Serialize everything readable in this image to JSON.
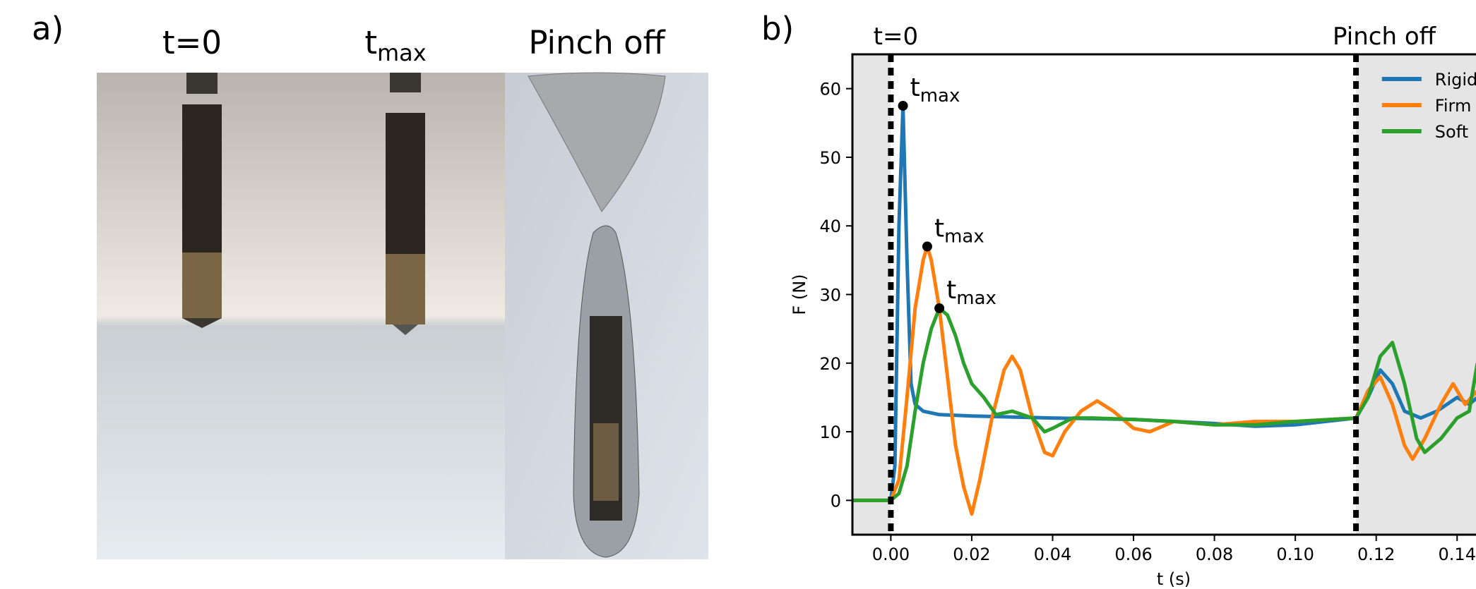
{
  "panel_a": {
    "label": "a)",
    "titles": [
      {
        "text": "t=0"
      },
      {
        "text": "t",
        "subscript": "max"
      },
      {
        "text": "Pinch off"
      }
    ]
  },
  "chart_data": {
    "type": "line",
    "panel_label": "b)",
    "xlabel": "t (s)",
    "ylabel": "F (N)",
    "xlim": [
      -0.0095,
      0.16
    ],
    "ylim": [
      -5,
      65
    ],
    "xticks": [
      {
        "value": 0,
        "label": "0.00"
      },
      {
        "value": 0.02,
        "label": "0.02"
      },
      {
        "value": 0.04,
        "label": "0.04"
      },
      {
        "value": 0.06,
        "label": "0.06"
      },
      {
        "value": 0.08,
        "label": "0.08"
      },
      {
        "value": 0.1,
        "label": "0.10"
      },
      {
        "value": 0.12,
        "label": "0.12"
      },
      {
        "value": 0.14,
        "label": "0.14"
      }
    ],
    "yticks": [
      0,
      10,
      20,
      30,
      40,
      50,
      60
    ],
    "grid": false,
    "legend": "upper right",
    "shade_outside_vlines": true,
    "vlines": [
      {
        "x": 0,
        "label": "t=0"
      },
      {
        "x": 0.115,
        "label": "Pinch off"
      }
    ],
    "annotations": [
      {
        "x": 0.003,
        "y": 57.5,
        "text": "t",
        "subscript": "max"
      },
      {
        "x": 0.009,
        "y": 37,
        "text": "t",
        "subscript": "max"
      },
      {
        "x": 0.012,
        "y": 28,
        "text": "t",
        "subscript": "max"
      }
    ],
    "series": [
      {
        "name": "Rigid",
        "color": "#1f77b4",
        "x": [
          -0.0095,
          0,
          0.001,
          0.002,
          0.003,
          0.004,
          0.005,
          0.006,
          0.008,
          0.012,
          0.02,
          0.04,
          0.06,
          0.08,
          0.09,
          0.1,
          0.115,
          0.118,
          0.121,
          0.124,
          0.127,
          0.131,
          0.135,
          0.14,
          0.143,
          0.145
        ],
        "values": [
          0,
          0,
          5,
          40,
          57.5,
          35,
          17,
          14,
          13,
          12.5,
          12.3,
          12,
          11.8,
          11.2,
          10.8,
          11,
          12,
          15,
          19,
          17,
          13,
          12,
          13,
          15,
          14,
          15
        ]
      },
      {
        "name": "Firm",
        "color": "#ff7f0e",
        "x": [
          -0.0095,
          0,
          0.002,
          0.004,
          0.006,
          0.008,
          0.009,
          0.01,
          0.012,
          0.014,
          0.016,
          0.018,
          0.02,
          0.022,
          0.025,
          0.028,
          0.03,
          0.032,
          0.035,
          0.038,
          0.04,
          0.043,
          0.047,
          0.051,
          0.055,
          0.06,
          0.064,
          0.07,
          0.08,
          0.09,
          0.1,
          0.115,
          0.118,
          0.121,
          0.124,
          0.127,
          0.129,
          0.132,
          0.136,
          0.139,
          0.142,
          0.145
        ],
        "values": [
          0,
          0,
          3,
          15,
          28,
          35,
          37,
          35,
          28,
          18,
          8,
          2,
          -2,
          3,
          12,
          19,
          21,
          19,
          12,
          7,
          6.5,
          10,
          13,
          14.5,
          13,
          10.5,
          10,
          11.5,
          11,
          11.5,
          11.5,
          12,
          16,
          18,
          14,
          8,
          6,
          9,
          14,
          17,
          14,
          16
        ]
      },
      {
        "name": "Soft",
        "color": "#2ca02c",
        "x": [
          -0.0095,
          0,
          0.002,
          0.004,
          0.006,
          0.008,
          0.01,
          0.012,
          0.014,
          0.016,
          0.018,
          0.02,
          0.023,
          0.026,
          0.03,
          0.035,
          0.038,
          0.04,
          0.045,
          0.05,
          0.06,
          0.07,
          0.08,
          0.09,
          0.1,
          0.115,
          0.118,
          0.121,
          0.124,
          0.127,
          0.13,
          0.132,
          0.136,
          0.14,
          0.143,
          0.145
        ],
        "values": [
          0,
          0,
          1,
          5,
          13,
          20,
          25,
          28,
          27,
          24,
          20,
          17,
          15,
          12.5,
          13,
          12,
          10,
          10.5,
          12,
          12,
          11.8,
          11.5,
          11,
          11,
          11.5,
          12,
          15,
          21,
          23,
          17,
          9,
          7,
          9,
          12,
          13,
          20
        ]
      }
    ]
  }
}
